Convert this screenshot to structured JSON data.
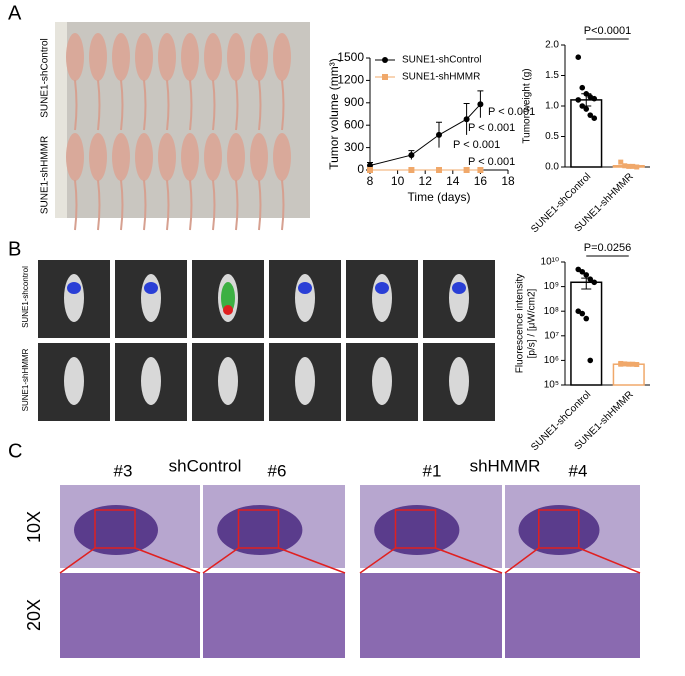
{
  "panel_labels": [
    "A",
    "B",
    "C"
  ],
  "panel_a": {
    "photo_labels": [
      "SUNE1-shControl",
      "SUNE1-shHMMR"
    ]
  },
  "panel_b": {
    "photo_labels": [
      "SUNE1-shcontrol",
      "SUNE1-shHMMR"
    ]
  },
  "panel_c": {
    "groups": [
      "shControl",
      "shHMMR"
    ],
    "samples": [
      "#3",
      "#6",
      "#1",
      "#4"
    ],
    "magnifications": [
      "10X",
      "20X"
    ]
  },
  "chart_data": [
    {
      "type": "line",
      "x_label": "Time (days)",
      "y_label": "Tumor volume (mm³)",
      "x": [
        8,
        11,
        13,
        15,
        16
      ],
      "series": [
        {
          "name": "SUNE1-shControl",
          "color": "#000000",
          "values": [
            60,
            200,
            470,
            680,
            880
          ],
          "error": [
            40,
            60,
            170,
            210,
            180
          ]
        },
        {
          "name": "SUNE1-shHMMR",
          "color": "#f0a86a",
          "values": [
            0,
            0,
            0,
            0,
            0
          ],
          "error": [
            0,
            0,
            0,
            0,
            0
          ]
        }
      ],
      "xlim": [
        8,
        18
      ],
      "xticks": [
        8,
        10,
        12,
        14,
        16,
        18
      ],
      "ylim": [
        0,
        1500
      ],
      "yticks": [
        0,
        300,
        600,
        900,
        1200,
        1500
      ],
      "annotations": [
        "P < 0.001",
        "P < 0.001",
        "P < 0.001",
        "P < 0.001"
      ]
    },
    {
      "type": "bar",
      "y_label": "Tumor weight (g)",
      "categories": [
        "SUNE1-shControl",
        "SUNE1-shHMMR"
      ],
      "values": [
        1.1,
        0.02
      ],
      "errors": [
        0.1,
        0.01
      ],
      "colors": [
        "#000000",
        "#f0a86a"
      ],
      "points": [
        [
          1.8,
          1.3,
          1.2,
          1.15,
          1.12,
          1.1,
          1.0,
          0.95,
          0.85,
          0.8
        ],
        [
          0.08,
          0.02,
          0.01,
          0.01,
          0.0
        ]
      ],
      "ylim": [
        0,
        2
      ],
      "yticks": [
        {
          "value": 0,
          "label": "0.0"
        },
        {
          "value": 0.5,
          "label": "0.5"
        },
        {
          "value": 1,
          "label": "1.0"
        },
        {
          "value": 1.5,
          "label": "1.5"
        },
        {
          "value": 2,
          "label": "2.0"
        }
      ],
      "annotation": "P<0.0001"
    },
    {
      "type": "bar",
      "log_scale": true,
      "y_label": [
        "Fluorescence intensity",
        "[p/s] / [μW/cm2]"
      ],
      "categories": [
        "SUNE1-shControl",
        "SUNE1-shHMMR"
      ],
      "values": [
        1500000000,
        700000
      ],
      "errors": [
        700000000,
        50000
      ],
      "colors": [
        "#000000",
        "#f0a86a"
      ],
      "points": [
        [
          5000000000,
          4000000000,
          3000000000,
          2000000000,
          1500000000,
          100000000,
          80000000,
          50000000,
          1000000
        ],
        [
          750000,
          720000,
          700000,
          700000,
          680000,
          700000
        ]
      ],
      "ylim": [
        100000,
        10000000000
      ],
      "yticks": [
        {
          "value": 100000,
          "label": "10⁵"
        },
        {
          "value": 1000000,
          "label": "10⁶"
        },
        {
          "value": 10000000,
          "label": "10⁷"
        },
        {
          "value": 100000000,
          "label": "10⁸"
        },
        {
          "value": 1000000000,
          "label": "10⁹"
        },
        {
          "value": 10000000000,
          "label": "10¹⁰"
        }
      ],
      "annotation": "P=0.0256"
    }
  ]
}
